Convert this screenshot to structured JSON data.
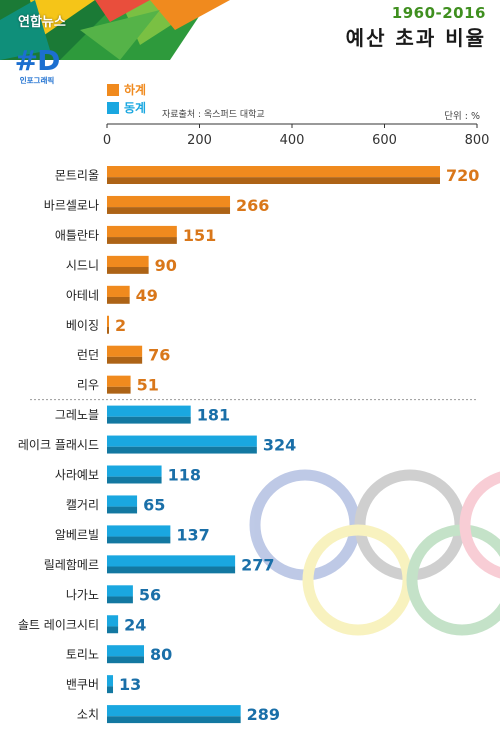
{
  "header": {
    "agency": "연합뉴스",
    "years": "1960-2016",
    "title": "예산 초과 비율",
    "logo_mark": "#D",
    "logo_sub": "인포그래픽"
  },
  "legend": {
    "summer": {
      "label": "하계",
      "color": "#f08a1e"
    },
    "winter": {
      "label": "동계",
      "color": "#1aa7e0"
    }
  },
  "source": "자료출처 : 옥스퍼드 대학교",
  "unit": "단위 : %",
  "chart_data": {
    "type": "bar",
    "orientation": "horizontal",
    "title": "예산 초과 비율",
    "subtitle": "1960-2016",
    "xlim": [
      0,
      800
    ],
    "ticks": [
      0,
      200,
      400,
      600,
      800
    ],
    "grid": false,
    "legend_position": "top-left",
    "series": [
      {
        "name": "하계",
        "color": "#f08a1e",
        "categories": [
          "몬트리올",
          "바르셀로나",
          "애틀란타",
          "시드니",
          "아테네",
          "베이징",
          "런던",
          "리우"
        ],
        "values": [
          720,
          266,
          151,
          90,
          49,
          2,
          76,
          51
        ]
      },
      {
        "name": "동계",
        "color": "#1aa7e0",
        "categories": [
          "그레노블",
          "레이크 플래시드",
          "사라예보",
          "캘거리",
          "알베르빌",
          "릴레함메르",
          "나가노",
          "솔트 레이크시티",
          "토리노",
          "밴쿠버",
          "소치"
        ],
        "values": [
          181,
          324,
          118,
          65,
          137,
          277,
          56,
          24,
          80,
          13,
          289
        ]
      }
    ]
  }
}
